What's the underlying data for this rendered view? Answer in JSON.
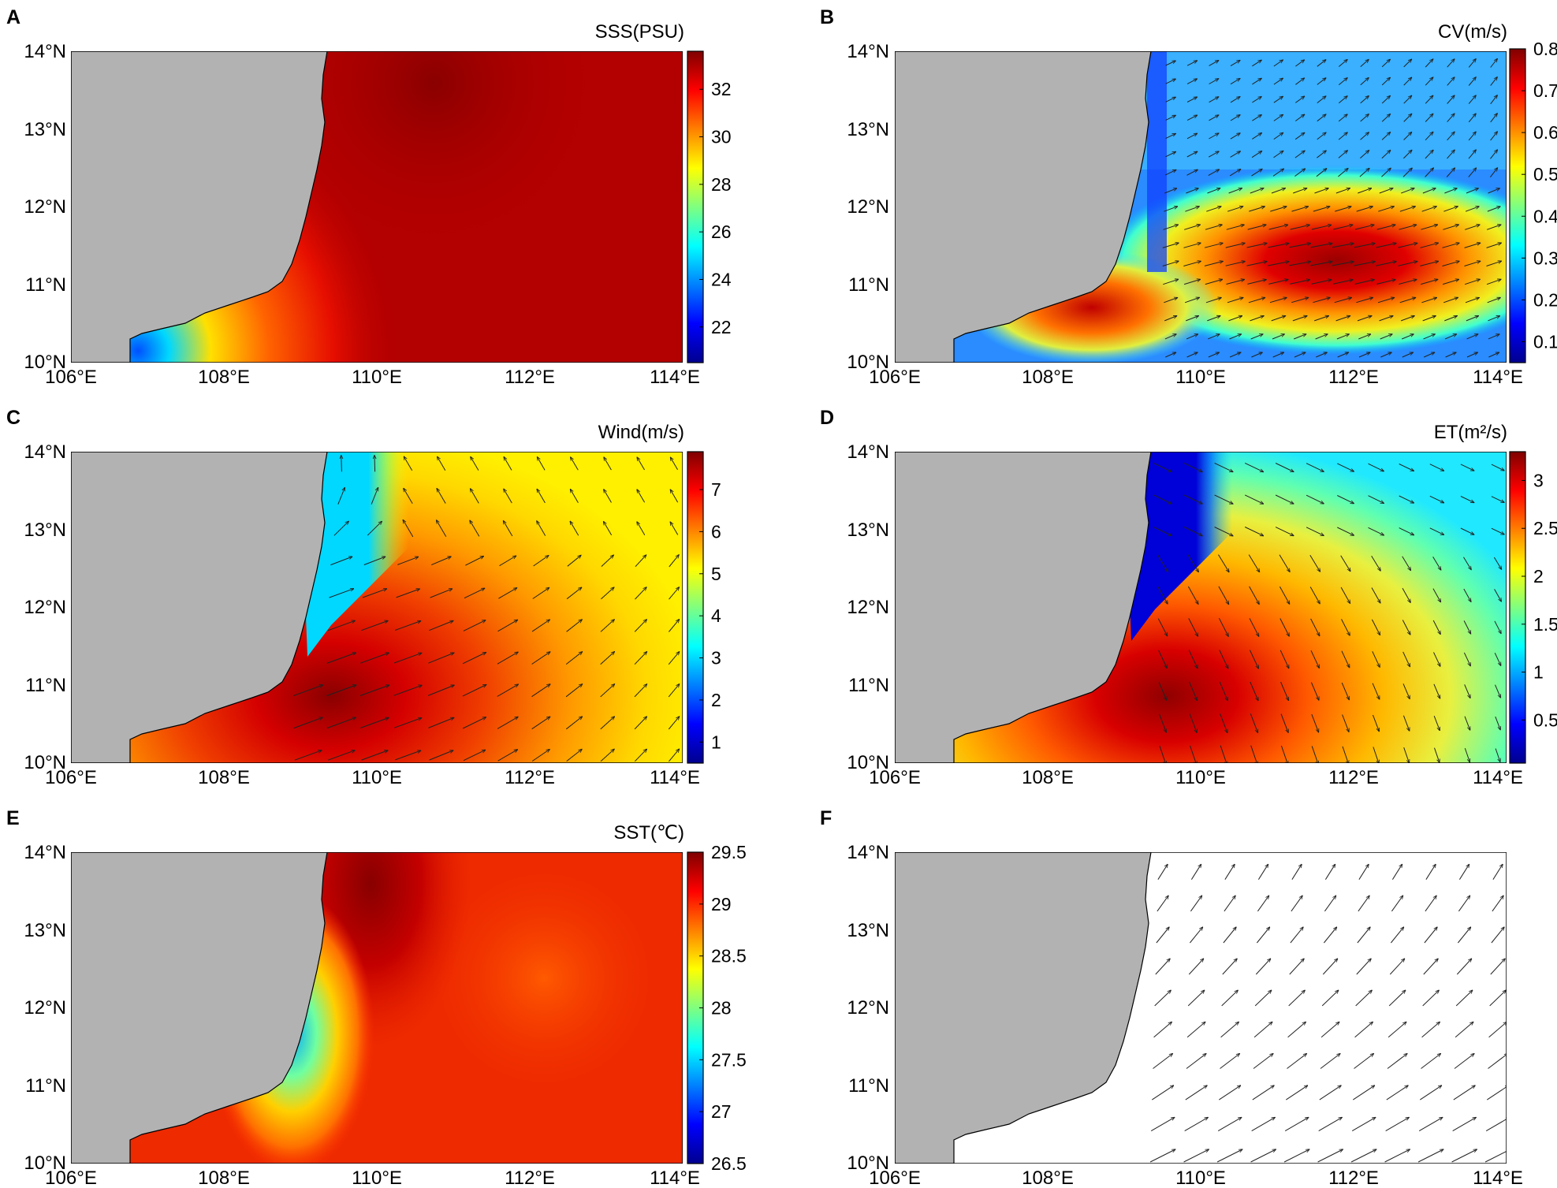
{
  "axes": {
    "lat_labels": [
      "14°N",
      "13°N",
      "12°N",
      "11°N",
      "10°N"
    ],
    "lon_labels": [
      "106°E",
      "108°E",
      "110°E",
      "112°E",
      "114°E"
    ]
  },
  "colors": {
    "land": "#b2b2b2",
    "colormap": "jet"
  },
  "panels": [
    {
      "label": "A",
      "variable": "SSS(PSU)",
      "vectors": false,
      "colorbar": {
        "min": 20.5,
        "max": 33.6,
        "ticks": [
          "22",
          "24",
          "26",
          "28",
          "30",
          "32"
        ],
        "tick_values": [
          22,
          24,
          26,
          28,
          30,
          32
        ]
      }
    },
    {
      "label": "B",
      "variable": "CV(m/s)",
      "vectors": true,
      "colorbar": {
        "min": 0.05,
        "max": 0.8,
        "ticks": [
          "0.1",
          "0.2",
          "0.3",
          "0.4",
          "0.5",
          "0.6",
          "0.7",
          "0.8"
        ],
        "tick_values": [
          0.1,
          0.2,
          0.3,
          0.4,
          0.5,
          0.6,
          0.7,
          0.8
        ]
      }
    },
    {
      "label": "C",
      "variable": "Wind(m/s)",
      "vectors": true,
      "colorbar": {
        "min": 0.5,
        "max": 7.9,
        "ticks": [
          "1",
          "2",
          "3",
          "4",
          "5",
          "6",
          "7"
        ],
        "tick_values": [
          1,
          2,
          3,
          4,
          5,
          6,
          7
        ]
      }
    },
    {
      "label": "D",
      "variable": "ET(m²/s)",
      "vectors": true,
      "colorbar": {
        "min": 0.05,
        "max": 3.3,
        "ticks": [
          "0.5",
          "1",
          "1.5",
          "2",
          "2.5",
          "3"
        ],
        "tick_values": [
          0.5,
          1,
          1.5,
          2,
          2.5,
          3
        ]
      }
    },
    {
      "label": "E",
      "variable": "SST(℃)",
      "vectors": false,
      "colorbar": {
        "min": 26.5,
        "max": 29.5,
        "ticks": [
          "26.5",
          "27",
          "27.5",
          "28",
          "28.5",
          "29",
          "29.5"
        ],
        "tick_values": [
          26.5,
          27,
          27.5,
          28,
          28.5,
          29,
          29.5
        ]
      }
    },
    {
      "label": "F",
      "variable": "",
      "vectors": true,
      "colorbar": null
    }
  ]
}
